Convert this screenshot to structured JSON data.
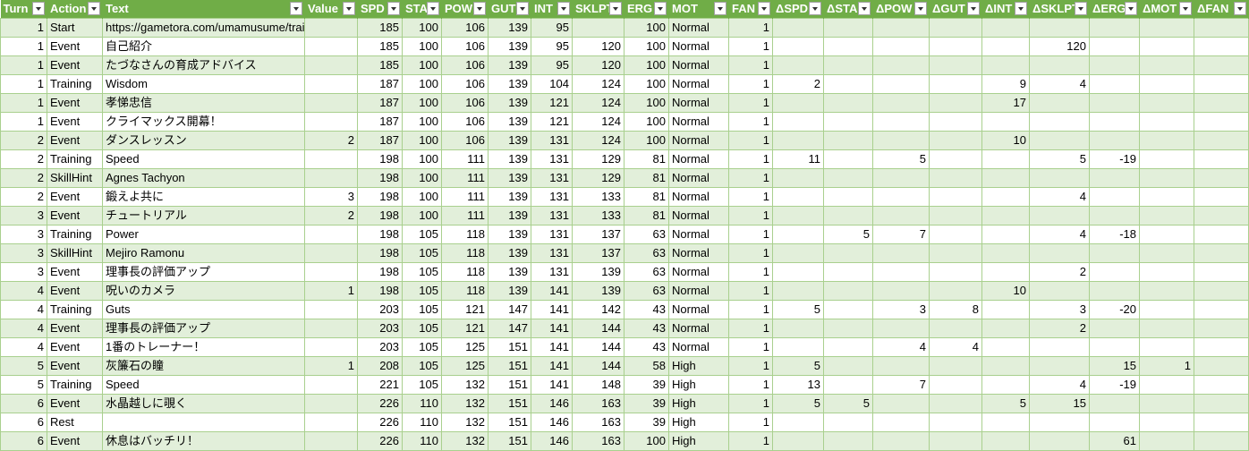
{
  "colors": {
    "header_bg": "#70ad47",
    "band": "#e2efda",
    "border": "#a9d08e"
  },
  "filter_icon": "dropdown-arrow-icon",
  "columns": [
    {
      "key": "turn",
      "label": "Turn",
      "align": "num"
    },
    {
      "key": "action",
      "label": "Action",
      "align": "txt"
    },
    {
      "key": "text",
      "label": "Text",
      "align": "txt"
    },
    {
      "key": "value",
      "label": "Value",
      "align": "num"
    },
    {
      "key": "spd",
      "label": "SPD",
      "align": "num"
    },
    {
      "key": "sta",
      "label": "STA",
      "align": "num"
    },
    {
      "key": "pow",
      "label": "POW",
      "align": "num"
    },
    {
      "key": "gut",
      "label": "GUT",
      "align": "num"
    },
    {
      "key": "int",
      "label": "INT",
      "align": "num"
    },
    {
      "key": "sklpt",
      "label": "SKLPT",
      "align": "num"
    },
    {
      "key": "erg",
      "label": "ERG",
      "align": "num"
    },
    {
      "key": "mot",
      "label": "MOT",
      "align": "txt"
    },
    {
      "key": "fan",
      "label": "FAN",
      "align": "num"
    },
    {
      "key": "dspd",
      "label": "ΔSPD",
      "align": "num"
    },
    {
      "key": "dsta",
      "label": "ΔSTA",
      "align": "num"
    },
    {
      "key": "dpow",
      "label": "ΔPOW",
      "align": "num"
    },
    {
      "key": "dgut",
      "label": "ΔGUT",
      "align": "num"
    },
    {
      "key": "dint",
      "label": "ΔINT",
      "align": "num"
    },
    {
      "key": "dsklpt",
      "label": "ΔSKLPT",
      "align": "num"
    },
    {
      "key": "derg",
      "label": "ΔERG",
      "align": "num"
    },
    {
      "key": "dmot",
      "label": "ΔMOT",
      "align": "num"
    },
    {
      "key": "dfan",
      "label": "ΔFAN",
      "align": "num"
    }
  ],
  "rows": [
    [
      "1",
      "Start",
      "https://gametora.com/umamusume/training-",
      "",
      "185",
      "100",
      "106",
      "139",
      "95",
      "",
      "100",
      "Normal",
      "1",
      "",
      "",
      "",
      "",
      "",
      "",
      "",
      "",
      ""
    ],
    [
      "1",
      "Event",
      "自己紹介",
      "",
      "185",
      "100",
      "106",
      "139",
      "95",
      "120",
      "100",
      "Normal",
      "1",
      "",
      "",
      "",
      "",
      "",
      "120",
      "",
      "",
      ""
    ],
    [
      "1",
      "Event",
      "たづなさんの育成アドバイス",
      "",
      "185",
      "100",
      "106",
      "139",
      "95",
      "120",
      "100",
      "Normal",
      "1",
      "",
      "",
      "",
      "",
      "",
      "",
      "",
      "",
      ""
    ],
    [
      "1",
      "Training",
      "Wisdom",
      "",
      "187",
      "100",
      "106",
      "139",
      "104",
      "124",
      "100",
      "Normal",
      "1",
      "2",
      "",
      "",
      "",
      "9",
      "4",
      "",
      "",
      ""
    ],
    [
      "1",
      "Event",
      "孝悌忠信",
      "",
      "187",
      "100",
      "106",
      "139",
      "121",
      "124",
      "100",
      "Normal",
      "1",
      "",
      "",
      "",
      "",
      "17",
      "",
      "",
      "",
      ""
    ],
    [
      "1",
      "Event",
      "クライマックス開幕！",
      "",
      "187",
      "100",
      "106",
      "139",
      "121",
      "124",
      "100",
      "Normal",
      "1",
      "",
      "",
      "",
      "",
      "",
      "",
      "",
      "",
      ""
    ],
    [
      "2",
      "Event",
      "ダンスレッスン",
      "2",
      "187",
      "100",
      "106",
      "139",
      "131",
      "124",
      "100",
      "Normal",
      "1",
      "",
      "",
      "",
      "",
      "10",
      "",
      "",
      "",
      ""
    ],
    [
      "2",
      "Training",
      "Speed",
      "",
      "198",
      "100",
      "111",
      "139",
      "131",
      "129",
      "81",
      "Normal",
      "1",
      "11",
      "",
      "5",
      "",
      "",
      "5",
      "-19",
      "",
      ""
    ],
    [
      "2",
      "SkillHint",
      "Agnes Tachyon",
      "",
      "198",
      "100",
      "111",
      "139",
      "131",
      "129",
      "81",
      "Normal",
      "1",
      "",
      "",
      "",
      "",
      "",
      "",
      "",
      "",
      ""
    ],
    [
      "2",
      "Event",
      "鍛えよ共に",
      "3",
      "198",
      "100",
      "111",
      "139",
      "131",
      "133",
      "81",
      "Normal",
      "1",
      "",
      "",
      "",
      "",
      "",
      "4",
      "",
      "",
      ""
    ],
    [
      "3",
      "Event",
      "チュートリアル",
      "2",
      "198",
      "100",
      "111",
      "139",
      "131",
      "133",
      "81",
      "Normal",
      "1",
      "",
      "",
      "",
      "",
      "",
      "",
      "",
      "",
      ""
    ],
    [
      "3",
      "Training",
      "Power",
      "",
      "198",
      "105",
      "118",
      "139",
      "131",
      "137",
      "63",
      "Normal",
      "1",
      "",
      "5",
      "7",
      "",
      "",
      "4",
      "-18",
      "",
      ""
    ],
    [
      "3",
      "SkillHint",
      "Mejiro Ramonu",
      "",
      "198",
      "105",
      "118",
      "139",
      "131",
      "137",
      "63",
      "Normal",
      "1",
      "",
      "",
      "",
      "",
      "",
      "",
      "",
      "",
      ""
    ],
    [
      "3",
      "Event",
      "理事長の評価アップ",
      "",
      "198",
      "105",
      "118",
      "139",
      "131",
      "139",
      "63",
      "Normal",
      "1",
      "",
      "",
      "",
      "",
      "",
      "2",
      "",
      "",
      ""
    ],
    [
      "4",
      "Event",
      "呪いのカメラ",
      "1",
      "198",
      "105",
      "118",
      "139",
      "141",
      "139",
      "63",
      "Normal",
      "1",
      "",
      "",
      "",
      "",
      "10",
      "",
      "",
      "",
      ""
    ],
    [
      "4",
      "Training",
      "Guts",
      "",
      "203",
      "105",
      "121",
      "147",
      "141",
      "142",
      "43",
      "Normal",
      "1",
      "5",
      "",
      "3",
      "8",
      "",
      "3",
      "-20",
      "",
      ""
    ],
    [
      "4",
      "Event",
      "理事長の評価アップ",
      "",
      "203",
      "105",
      "121",
      "147",
      "141",
      "144",
      "43",
      "Normal",
      "1",
      "",
      "",
      "",
      "",
      "",
      "2",
      "",
      "",
      ""
    ],
    [
      "4",
      "Event",
      "1番のトレーナー！",
      "",
      "203",
      "105",
      "125",
      "151",
      "141",
      "144",
      "43",
      "Normal",
      "1",
      "",
      "",
      "4",
      "4",
      "",
      "",
      "",
      "",
      ""
    ],
    [
      "5",
      "Event",
      "灰簾石の瞳",
      "1",
      "208",
      "105",
      "125",
      "151",
      "141",
      "144",
      "58",
      "High",
      "1",
      "5",
      "",
      "",
      "",
      "",
      "",
      "15",
      "1",
      ""
    ],
    [
      "5",
      "Training",
      "Speed",
      "",
      "221",
      "105",
      "132",
      "151",
      "141",
      "148",
      "39",
      "High",
      "1",
      "13",
      "",
      "7",
      "",
      "",
      "4",
      "-19",
      "",
      ""
    ],
    [
      "6",
      "Event",
      "水晶越しに覗く",
      "",
      "226",
      "110",
      "132",
      "151",
      "146",
      "163",
      "39",
      "High",
      "1",
      "5",
      "5",
      "",
      "",
      "5",
      "15",
      "",
      "",
      ""
    ],
    [
      "6",
      "Rest",
      "",
      "",
      "226",
      "110",
      "132",
      "151",
      "146",
      "163",
      "39",
      "High",
      "1",
      "",
      "",
      "",
      "",
      "",
      "",
      "",
      "",
      ""
    ],
    [
      "6",
      "Event",
      "休息はバッチリ！",
      "",
      "226",
      "110",
      "132",
      "151",
      "146",
      "163",
      "100",
      "High",
      "1",
      "",
      "",
      "",
      "",
      "",
      "",
      "61",
      "",
      ""
    ]
  ]
}
